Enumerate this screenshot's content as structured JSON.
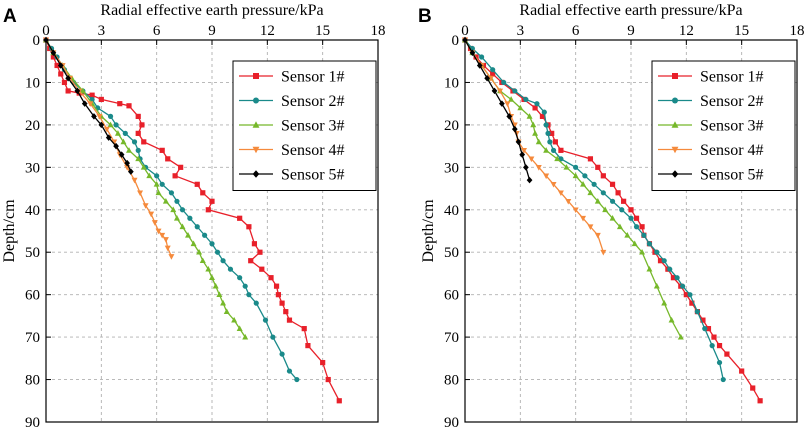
{
  "chart_data": [
    {
      "type": "line",
      "panel_label": "A",
      "title": "",
      "xlabel": "Radial effective earth pressure/kPa",
      "ylabel": "Depth/cm",
      "xlim": [
        0,
        18
      ],
      "ylim": [
        0,
        90
      ],
      "y_inverted": true,
      "x_axis_position": "top",
      "xticks": [
        0,
        3,
        6,
        9,
        12,
        15,
        18
      ],
      "yticks": [
        0,
        10,
        20,
        30,
        40,
        50,
        60,
        70,
        80,
        90
      ],
      "grid": true,
      "legend_position": "top-right",
      "series": [
        {
          "name": "Sensor 1#",
          "color": "#e8202a",
          "marker": "square",
          "x": [
            0,
            0.2,
            0.4,
            0.6,
            0.8,
            1.0,
            1.2,
            1.8,
            2.5,
            3.0,
            4.0,
            4.5,
            5.0,
            5.2,
            5.0,
            5.3,
            6.3,
            6.6,
            7.3,
            7.0,
            8.2,
            8.5,
            9.0,
            8.8,
            10.5,
            11.0,
            11.3,
            11.6,
            11.1,
            11.7,
            12.2,
            12.5,
            12.6,
            12.8,
            13.0,
            13.2,
            14.0,
            14.2,
            15.0,
            15.3,
            15.9
          ],
          "y": [
            0,
            2,
            4,
            6,
            8,
            10,
            12,
            12.5,
            13,
            14,
            15,
            15.5,
            18,
            20,
            22,
            24,
            26,
            28,
            30,
            32,
            34,
            36,
            38,
            40,
            42,
            44,
            48,
            50,
            52,
            54,
            56,
            58,
            60,
            62,
            64,
            66,
            68,
            72,
            76,
            80,
            85
          ]
        },
        {
          "name": "Sensor 2#",
          "color": "#1a8a8a",
          "marker": "circle",
          "x": [
            0,
            0.3,
            0.6,
            1.0,
            1.5,
            2.0,
            2.5,
            2.8,
            3.5,
            3.8,
            4.3,
            4.8,
            5.0,
            5.1,
            5.4,
            6.0,
            6.3,
            6.8,
            7.1,
            7.4,
            7.8,
            8.2,
            8.6,
            9.0,
            9.3,
            9.6,
            10.0,
            10.5,
            10.8,
            11.0,
            11.4,
            11.9,
            12.3,
            12.8,
            13.2,
            13.6
          ],
          "y": [
            0,
            2,
            4,
            7,
            10,
            12,
            14,
            16,
            18,
            20,
            22,
            24,
            26,
            28,
            30,
            32,
            34,
            36,
            38,
            40,
            42,
            44,
            46,
            48,
            50,
            52,
            54,
            56,
            58,
            60,
            62,
            66,
            70,
            74,
            78,
            80
          ]
        },
        {
          "name": "Sensor 3#",
          "color": "#76b82a",
          "marker": "triangle-up",
          "x": [
            0,
            0.4,
            0.9,
            1.4,
            2.0,
            2.5,
            3.0,
            3.5,
            3.9,
            4.2,
            4.5,
            5.0,
            5.3,
            5.6,
            6.0,
            6.1,
            6.5,
            6.9,
            7.1,
            7.4,
            7.7,
            8.0,
            8.3,
            8.5,
            8.8,
            9.0,
            9.2,
            9.4,
            9.6,
            9.8,
            10.2,
            10.5,
            10.8
          ],
          "y": [
            0,
            3,
            6,
            9,
            12,
            15,
            18,
            20,
            22,
            24,
            26,
            28,
            30,
            32,
            34,
            36,
            38,
            40,
            42,
            44,
            46,
            48,
            50,
            52,
            54,
            56,
            58,
            60,
            62,
            64,
            66,
            68,
            70
          ]
        },
        {
          "name": "Sensor 4#",
          "color": "#f58a3c",
          "marker": "triangle-down",
          "x": [
            0,
            0.4,
            0.9,
            1.3,
            1.8,
            2.4,
            2.9,
            3.3,
            3.7,
            4.0,
            4.4,
            4.8,
            5.1,
            5.4,
            5.7,
            5.9,
            6.1,
            6.3,
            6.5,
            6.6,
            6.8
          ],
          "y": [
            0,
            3,
            6,
            9,
            12,
            15,
            18,
            21,
            24,
            27,
            30,
            33,
            36,
            39,
            41,
            43,
            45,
            46,
            47,
            49,
            51
          ]
        },
        {
          "name": "Sensor 5#",
          "color": "#000000",
          "marker": "diamond",
          "x": [
            0,
            0.4,
            0.8,
            1.2,
            1.7,
            2.1,
            2.6,
            3.0,
            3.4,
            3.8,
            4.1,
            4.4,
            4.6
          ],
          "y": [
            0,
            3,
            6,
            9,
            12,
            15,
            18,
            20,
            23,
            25,
            27,
            29,
            31
          ]
        }
      ]
    },
    {
      "type": "line",
      "panel_label": "B",
      "title": "",
      "xlabel": "Radial effective earth pressure/kPa",
      "ylabel": "Depth/cm",
      "xlim": [
        0,
        18
      ],
      "ylim": [
        0,
        90
      ],
      "y_inverted": true,
      "x_axis_position": "top",
      "xticks": [
        0,
        3,
        6,
        9,
        12,
        15,
        18
      ],
      "yticks": [
        0,
        10,
        20,
        30,
        40,
        50,
        60,
        70,
        80,
        90
      ],
      "grid": true,
      "legend_position": "top-right",
      "series": [
        {
          "name": "Sensor 1#",
          "color": "#e8202a",
          "marker": "square",
          "x": [
            0,
            0.3,
            0.6,
            1.0,
            1.5,
            2.0,
            2.6,
            3.2,
            3.8,
            4.2,
            4.5,
            4.7,
            4.9,
            5.2,
            6.8,
            7.2,
            7.5,
            8.0,
            8.3,
            8.6,
            9.0,
            9.3,
            9.6,
            9.7,
            10.0,
            10.3,
            10.6,
            11.0,
            11.3,
            11.7,
            12.0,
            12.3,
            12.6,
            12.9,
            13.2,
            13.5,
            13.8,
            14.2,
            15.0,
            15.6,
            16.0
          ],
          "y": [
            0,
            2,
            4,
            6,
            8,
            10,
            12,
            14,
            16,
            18,
            20,
            22,
            24,
            26,
            28,
            30,
            32,
            34,
            36,
            38,
            40,
            42,
            44,
            46,
            48,
            50,
            52,
            54,
            56,
            58,
            60,
            62,
            64,
            66,
            68,
            70,
            72,
            74,
            78,
            82,
            85
          ]
        },
        {
          "name": "Sensor 2#",
          "color": "#1a8a8a",
          "marker": "circle",
          "x": [
            0,
            0.4,
            0.9,
            1.5,
            2.1,
            2.7,
            3.3,
            3.9,
            4.3,
            4.4,
            4.5,
            4.6,
            4.8,
            5.2,
            6.0,
            6.5,
            7.0,
            7.5,
            8.0,
            8.5,
            9.0,
            9.3,
            9.7,
            10.0,
            10.4,
            10.8,
            11.1,
            11.5,
            11.8,
            12.2,
            12.6,
            13.0,
            13.4,
            13.8,
            14.0
          ],
          "y": [
            0,
            2,
            4,
            7,
            10,
            12,
            14,
            15,
            17,
            20,
            22,
            24,
            26,
            28,
            30,
            32,
            34,
            36,
            38,
            40,
            42,
            44,
            46,
            48,
            50,
            52,
            54,
            56,
            58,
            60,
            64,
            68,
            72,
            76,
            80
          ]
        },
        {
          "name": "Sensor 3#",
          "color": "#76b82a",
          "marker": "triangle-up",
          "x": [
            0,
            0.4,
            0.9,
            1.4,
            1.9,
            2.5,
            3.0,
            3.5,
            3.7,
            3.8,
            4.0,
            4.4,
            5.0,
            5.5,
            6.0,
            6.4,
            6.8,
            7.2,
            7.6,
            8.0,
            8.4,
            8.8,
            9.2,
            9.6,
            10.0,
            10.4,
            10.8,
            11.2,
            11.7
          ],
          "y": [
            0,
            3,
            6,
            9,
            12,
            14,
            16,
            18,
            20,
            22,
            24,
            26,
            28,
            30,
            32,
            34,
            36,
            38,
            40,
            42,
            44,
            46,
            48,
            50,
            54,
            58,
            62,
            66,
            70
          ]
        },
        {
          "name": "Sensor 4#",
          "color": "#f58a3c",
          "marker": "triangle-down",
          "x": [
            0,
            0.4,
            0.9,
            1.4,
            1.9,
            2.3,
            2.5,
            2.7,
            2.8,
            2.9,
            3.2,
            3.6,
            4.0,
            4.4,
            4.8,
            5.2,
            5.6,
            6.0,
            6.4,
            6.8,
            7.2,
            7.5
          ],
          "y": [
            0,
            3,
            6,
            9,
            12,
            15,
            18,
            20,
            22,
            24,
            26,
            28,
            30,
            32,
            34,
            36,
            38,
            40,
            42,
            44,
            46,
            50
          ]
        },
        {
          "name": "Sensor 5#",
          "color": "#000000",
          "marker": "diamond",
          "x": [
            0,
            0.4,
            0.8,
            1.2,
            1.6,
            2.0,
            2.4,
            2.7,
            2.9,
            3.1,
            3.3,
            3.5
          ],
          "y": [
            0,
            3,
            6,
            9,
            12,
            15,
            18,
            21,
            24,
            27,
            30,
            33
          ]
        }
      ]
    }
  ]
}
